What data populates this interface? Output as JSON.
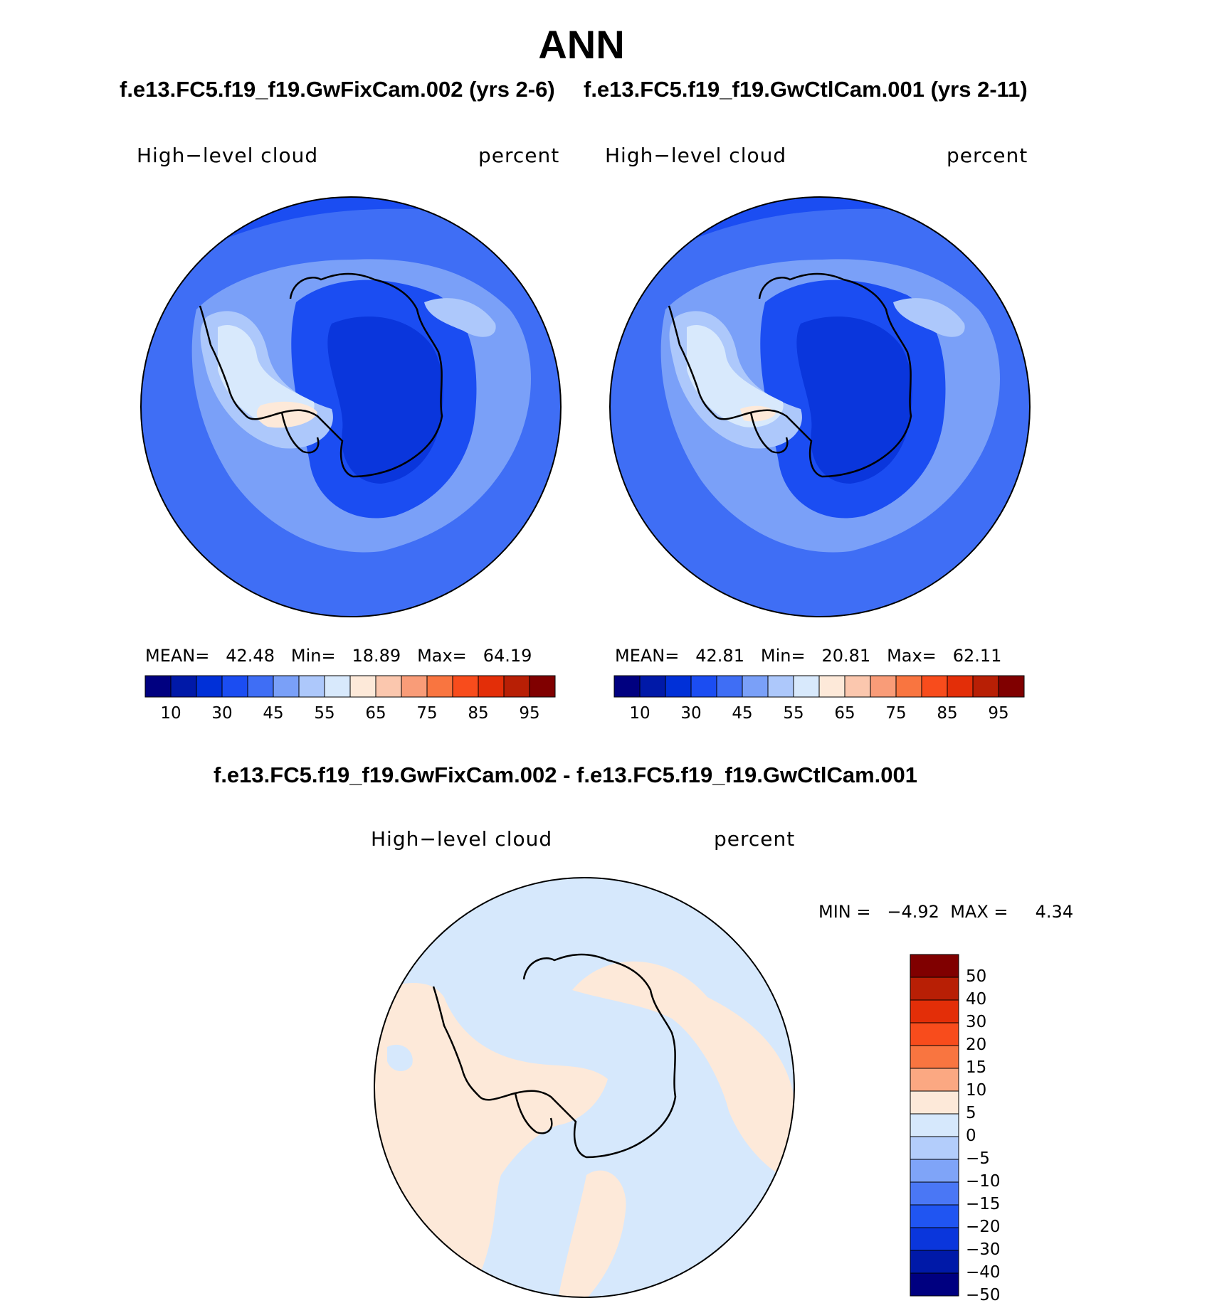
{
  "title": "ANN",
  "panels": [
    {
      "case_title": "f.e13.FC5.f19_f19.GwFixCam.002 (yrs 2-6)",
      "field_label": "High−level cloud",
      "units_label": "percent",
      "stats": {
        "mean_label": "MEAN=",
        "mean": "42.48",
        "min_label": "Min=",
        "min": "18.89",
        "max_label": "Max=",
        "max": "64.19"
      }
    },
    {
      "case_title": "f.e13.FC5.f19_f19.GwCtlCam.001 (yrs 2-11)",
      "field_label": "High−level cloud",
      "units_label": "percent",
      "stats": {
        "mean_label": "MEAN=",
        "mean": "42.81",
        "min_label": "Min=",
        "min": "20.81",
        "max_label": "Max=",
        "max": "62.11"
      }
    }
  ],
  "colorbar_horizontal": {
    "colors": [
      "#000080",
      "#0019a8",
      "#0030d8",
      "#1b4df2",
      "#3f6ef5",
      "#7aa0f8",
      "#adc8fb",
      "#d8e9fc",
      "#fde9d9",
      "#fbc7ae",
      "#f99c78",
      "#f97540",
      "#f84c1c",
      "#e32e08",
      "#b81f05",
      "#800000"
    ],
    "tick_labels": [
      "10",
      "30",
      "45",
      "55",
      "65",
      "75",
      "85",
      "95"
    ]
  },
  "difference": {
    "title": "f.e13.FC5.f19_f19.GwFixCam.002 - f.e13.FC5.f19_f19.GwCtlCam.001",
    "field_label": "High−level cloud",
    "units_label": "percent",
    "min_label": "MIN =",
    "min": "−4.92",
    "max_label": "MAX =",
    "max": "4.34",
    "colorbar": {
      "colors": [
        "#800000",
        "#b81f05",
        "#e32e08",
        "#f84c1c",
        "#f97540",
        "#fba882",
        "#fde9d9",
        "#d6e8fc",
        "#b3cdfb",
        "#7fa4f8",
        "#4a77f5",
        "#2055f2",
        "#0a36dc",
        "#0019a8",
        "#000080"
      ],
      "tick_labels": [
        "50",
        "40",
        "30",
        "20",
        "15",
        "10",
        "5",
        "0",
        "−5",
        "−10",
        "−15",
        "−20",
        "−30",
        "−40",
        "−50"
      ]
    }
  },
  "map_colors": {
    "deep": "#0a36dc",
    "dark": "#1b4df2",
    "mid": "#3f6ef5",
    "light": "#7aa0f8",
    "lighter": "#adc8fb",
    "pale": "#d8e9fc",
    "warm": "#fde9d9",
    "diff_pos": "#fde9d9",
    "diff_neg": "#d6e8fc",
    "coast": "#000000"
  }
}
